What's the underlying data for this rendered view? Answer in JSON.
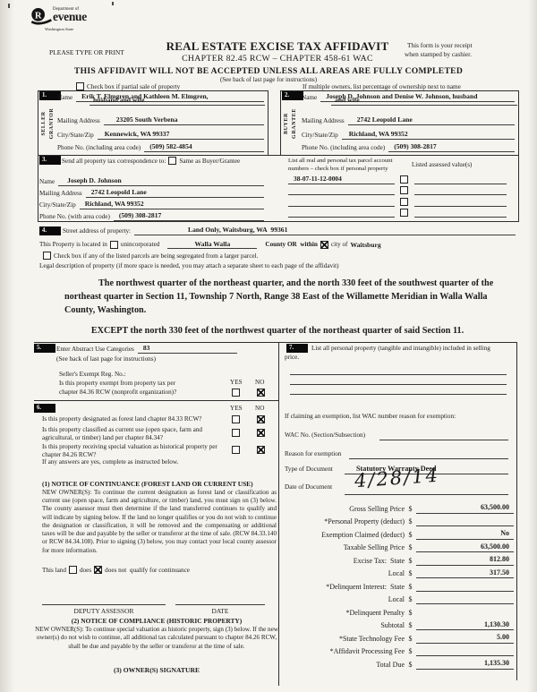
{
  "logo": {
    "department_of": "Department of",
    "revenue_word": "evenue",
    "r_letter": "R",
    "state": "Washington State"
  },
  "header": {
    "please_type": "PLEASE TYPE OR PRINT",
    "title": "REAL ESTATE EXCISE TAX AFFIDAVIT",
    "subtitle": "CHAPTER 82.45 RCW – CHAPTER 458-61 WAC",
    "receipt_note_1": "This form is your receipt",
    "receipt_note_2": "when stamped by cashier.",
    "warning": "THIS AFFIDAVIT WILL NOT BE ACCEPTED UNLESS ALL AREAS ARE FULLY COMPLETED",
    "see_back": "(See back of last page for instructions)",
    "partial_sale": "Check box if partial sale of property",
    "multiple_owners": "If multiple owners, list percentage of ownership next to name"
  },
  "seller": {
    "section_no": "1.",
    "side_label_1": "SELLER",
    "side_label_2": "GRANTOR",
    "name_label": "Name",
    "name_value_1": "Erik T. Elmgren and Kathleen M. Elmgren,",
    "name_value_2": "husband and wife",
    "mailing_label": "Mailing Address",
    "mailing_value": "23205 South Verbena",
    "city_label": "City/State/Zip",
    "city_value": "Kennewick, WA 99337",
    "phone_label": "Phone No. (including area code)",
    "phone_value": "(509) 582-4854"
  },
  "buyer": {
    "section_no": "2.",
    "side_label_1": "BUYER",
    "side_label_2": "GRANTEE",
    "name_label": "Name",
    "name_value_1": "Joseph D. Johnson and Denise W. Johnson, husband",
    "name_value_2": "and wife",
    "mailing_label": "Mailing Address",
    "mailing_value": "2742 Leopold Lane",
    "city_label": "City/State/Zip",
    "city_value": "Richland, WA 99352",
    "phone_label": "Phone No. (including area code)",
    "phone_value": "(509) 308-2817"
  },
  "section3": {
    "section_no": "3.",
    "send_label": "Send all property tax correspondence to:",
    "same_as_label": "Same as Buyer/Grantee",
    "parcel_header_1": "List all real and personal tax parcel account",
    "parcel_header_2": "numbers – check box if personal property",
    "assessed_header": "Listed assessed value(s)",
    "name_label": "Name",
    "name_value": "Joseph D. Johnson",
    "mailing_label": "Mailing Address",
    "mailing_value": "2742 Leopold Lane",
    "city_label": "City/State/Zip",
    "city_value": "Richland, WA 99352",
    "phone_label": "Phone No. (with area code)",
    "phone_value": "(509) 308-2817",
    "parcels": [
      "38-07-11-12-0004",
      "",
      "",
      ""
    ]
  },
  "section4": {
    "section_no": "4.",
    "street_label": "Street address of property:",
    "street_value": "Land Only, Waitsburg, WA  99361",
    "located_prefix": "This Property is located in",
    "unincorporated_label": "unincorporated",
    "county_value": "Walla Walla",
    "county_or_label": "County OR  within",
    "city_of_label": "city of",
    "city_value": "Waitsburg",
    "segregated_label": "Check box if any of the listed parcels are being segregated from a larger parcel.",
    "legal_label": "Legal description of property (if more space is needed, you may attach a separate sheet to each page of the affidavit)",
    "legal_text": "The northwest quarter of the northeast quarter, and the north 330 feet of the southwest quarter of the northeast quarter in Section 11, Township 7 North, Range 38 East of the Willamette Meridian in Walla Walla County, Washington.",
    "legal_except": "EXCEPT the north 330 feet of the northwest quarter of the northeast quarter of said Section 11."
  },
  "section5": {
    "section_no": "5.",
    "abstract_label": "Enter Abstract Use Categories",
    "abstract_value": "83",
    "see_back": "(See back of last page for instructions)",
    "exempt_reg_label": "Seller's Exempt Reg. No.:",
    "exempt_q1": "Is this property exempt from property tax per",
    "exempt_q2": "chapter 84.36 RCW (nonprofit organization)?",
    "yes": "YES",
    "no": "NO"
  },
  "section6": {
    "section_no": "6.",
    "yes": "YES",
    "no": "NO",
    "q_forest": "Is this property designated as forest land chapter 84.33 RCW?",
    "q_current_use": "Is this property classified as current use (open space, farm and agricultural, or timber) land per chapter 84.34?",
    "q_historical": "Is this property receiving special valuation as historical property per chapter 84.26 RCW?",
    "if_any": "If any answers are yes, complete as instructed below.",
    "notice1_title": "(1) NOTICE OF CONTINUANCE (FOREST LAND OR CURRENT USE)",
    "notice1_body": "NEW OWNER(S): To continue the current designation as forest land or classification as current use (open space, farm and agriculture, or timber) land, you must sign on (3) below.  The county assessor must then determine if the land transferred continues to qualify and will indicate by signing below. If the land no longer qualifies or you do not wish to continue the designation or classification, it will be removed and the compensating or additional taxes will be due and payable by the seller or transferor at the time of sale.  (RCW 84.33.140 or RCW 84.34.108). Prior to signing (3) below, you may contact your local county assessor for more information.",
    "this_land": "This land",
    "does_label": "does",
    "does_not_label": "does not  qualify for continuance",
    "deputy_label": "DEPUTY ASSESSOR",
    "date_label": "DATE",
    "notice2_title": "(2) NOTICE OF COMPLIANCE (HISTORIC PROPERTY)",
    "notice2_body": "NEW OWNER(S):  To continue special valuation as historic property, sign (3) below.  If the new owner(s) do not wish to continue, all additional tax calculated pursuant to chapter 84.26 RCW, shall be due and payable by the seller or transferor at the time of sale.",
    "owners_signature": "(3)  OWNER(S) SIGNATURE"
  },
  "section7": {
    "section_no": "7.",
    "personal_label_1": "List all personal property (tangible and intangible) included in selling",
    "personal_label_2": "price.",
    "claiming_label": "If claiming an exemption, list WAC number reason for exemption:",
    "wac_label": "WAC No. (Section/Subsection)",
    "reason_label": "Reason for exemption",
    "type_label": "Type of Document",
    "type_value": "Statutory Warranty Deed",
    "date_label": "Date of Document",
    "date_value": "4/28/14",
    "dollar_sign": "$",
    "money_rows": [
      {
        "label": "Gross Selling Price",
        "value": "63,500.00",
        "line": true
      },
      {
        "label": "*Personal Property (deduct)",
        "value": "",
        "line": true
      },
      {
        "label": "Exemption Claimed (deduct)",
        "value": "No",
        "line": true
      },
      {
        "label": "Taxable Selling Price",
        "value": "63,500.00",
        "line": true
      },
      {
        "label": "Excise Tax:  State",
        "value": "812.80",
        "line": true
      },
      {
        "label": "Local",
        "value": "317.50",
        "line": true
      },
      {
        "label": "*Delinquent Interest:  State",
        "value": "",
        "line": true
      },
      {
        "label": "Local",
        "value": "",
        "line": true
      },
      {
        "label": "*Delinquent Penalty",
        "value": "",
        "line": false
      },
      {
        "label": "Subtotal",
        "value": "1,130.30",
        "line": true
      },
      {
        "label": "*State Technology Fee",
        "value": "5.00",
        "line": true
      },
      {
        "label": "*Affidavit Processing Fee",
        "value": "",
        "line": true
      },
      {
        "label": "Total Due",
        "value": "1,135.30",
        "line": true
      }
    ]
  },
  "checkbox_states": {
    "partial_sale": false,
    "same_as_buyer": false,
    "parcels": [
      false,
      false,
      false,
      false
    ],
    "unincorporated": false,
    "within_city": true,
    "exempt_yes": false,
    "exempt_no": true,
    "forest_yes": false,
    "forest_no": true,
    "current_use_yes": false,
    "current_use_no": true,
    "historical_yes": false,
    "historical_no": true,
    "segregated": false,
    "land_does": false,
    "land_does_not": true
  }
}
